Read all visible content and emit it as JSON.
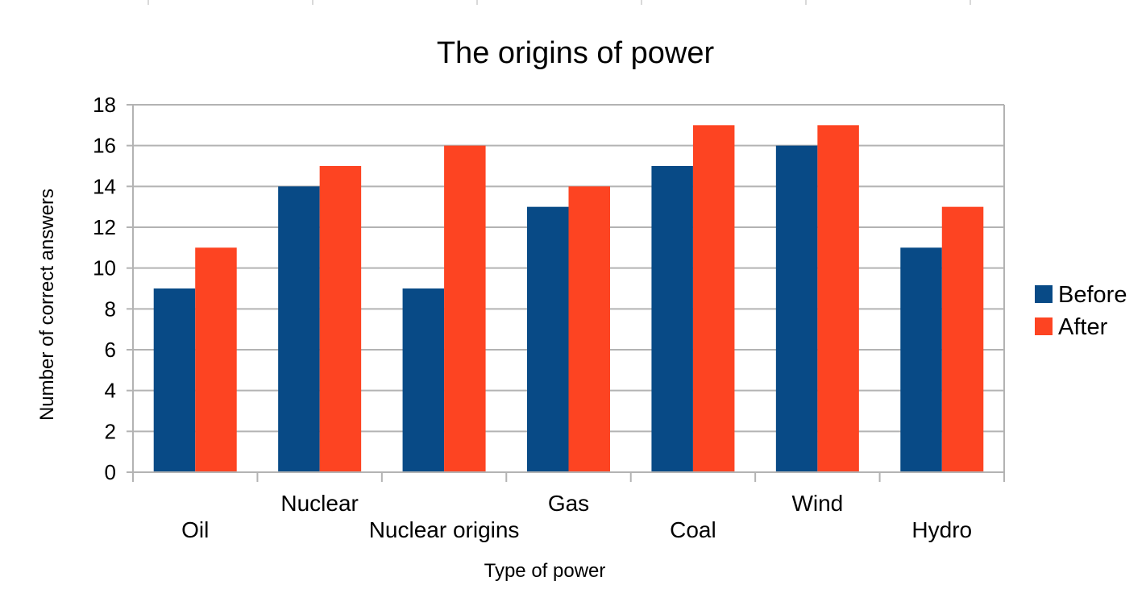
{
  "chart_data": {
    "type": "bar",
    "title": "The origins of power",
    "xlabel": "Type of power",
    "ylabel": "Number  of  correct  answers",
    "categories": [
      "Oil",
      "Nuclear",
      "Nuclear origins",
      "Gas",
      "Coal",
      "Wind",
      "Hydro"
    ],
    "series": [
      {
        "name": "Before",
        "color": "#084a86",
        "values": [
          9,
          14,
          9,
          13,
          15,
          16,
          11
        ]
      },
      {
        "name": "After",
        "color": "#fd4422",
        "values": [
          11,
          15,
          16,
          14,
          17,
          17,
          13
        ]
      }
    ],
    "ylim": [
      0,
      18
    ],
    "yticks": [
      0,
      2,
      4,
      6,
      8,
      10,
      12,
      14,
      16,
      18
    ],
    "grid": true,
    "legend_position": "right",
    "gridline_color": "#b3b3b3"
  }
}
